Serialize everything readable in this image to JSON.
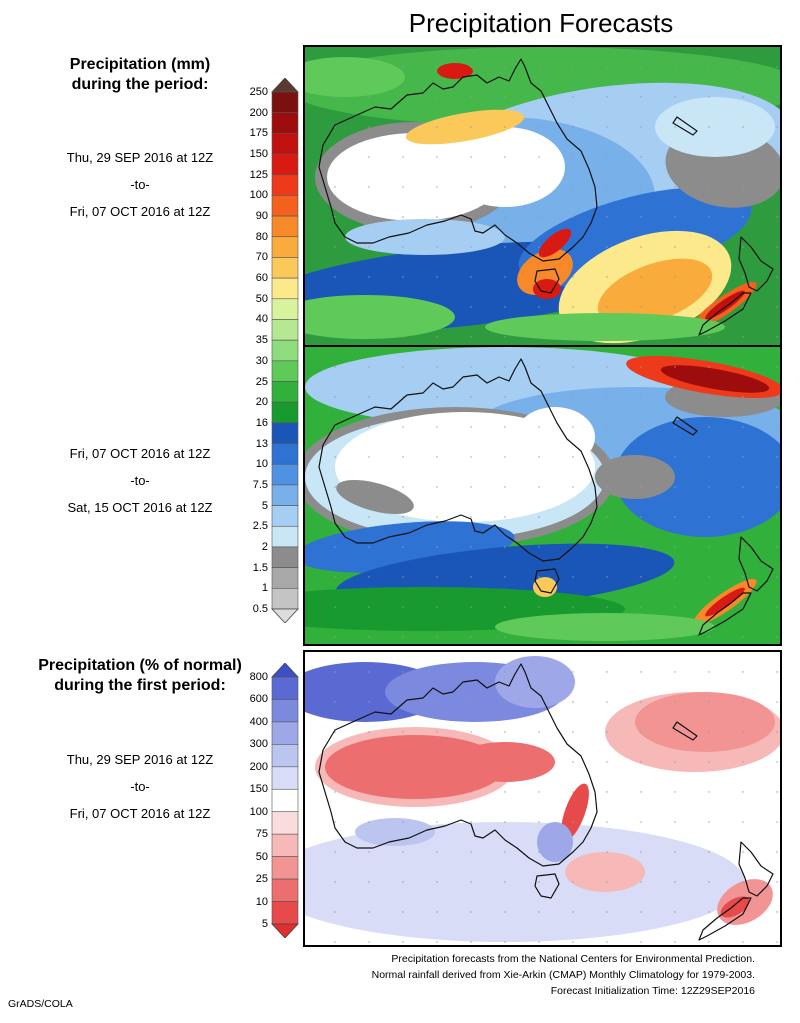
{
  "title": "Precipitation Forecasts",
  "top_section": {
    "heading_line1": "Precipitation (mm)",
    "heading_line2": "during the period:",
    "period1": {
      "start": "Thu, 29 SEP 2016 at 12Z",
      "sep": "-to-",
      "end": "Fri, 07 OCT 2016 at 12Z"
    },
    "period2": {
      "start": "Fri, 07 OCT 2016 at 12Z",
      "sep": "-to-",
      "end": "Sat, 15 OCT 2016 at 12Z"
    },
    "colorbar": {
      "ticks": [
        "250",
        "200",
        "175",
        "150",
        "125",
        "100",
        "90",
        "80",
        "70",
        "60",
        "50",
        "40",
        "35",
        "30",
        "25",
        "20",
        "16",
        "13",
        "10",
        "7.5",
        "5",
        "2.5",
        "2",
        "1.5",
        "1",
        "0.5"
      ],
      "colors": [
        "#5a3a2e",
        "#7a1010",
        "#9e0d0d",
        "#c0100f",
        "#d91a12",
        "#ee3a1a",
        "#f4601e",
        "#f7892a",
        "#f9ab3c",
        "#fbc95a",
        "#fce98c",
        "#d9f29e",
        "#b6e893",
        "#8fdc7f",
        "#5fc95a",
        "#32b03c",
        "#189a2f",
        "#1a56b8",
        "#2e72d4",
        "#5092e2",
        "#78b0ea",
        "#a6cdf2",
        "#c8e6f6",
        "#8c8c8c",
        "#a8a8a8",
        "#c4c4c4",
        "#dcdcdc"
      ]
    }
  },
  "bottom_section": {
    "heading_line1": "Precipitation (% of normal)",
    "heading_line2": "during the first period:",
    "period": {
      "start": "Thu, 29 SEP 2016 at 12Z",
      "sep": "-to-",
      "end": "Fri, 07 OCT 2016 at 12Z"
    },
    "colorbar": {
      "ticks": [
        "800",
        "600",
        "400",
        "300",
        "200",
        "150",
        "100",
        "75",
        "50",
        "25",
        "10",
        "5"
      ],
      "colors": [
        "#3d4fc4",
        "#5a6ad2",
        "#7b89de",
        "#9ea8e8",
        "#bcc4f0",
        "#d8dcf7",
        "#ffffff",
        "#fbdcdc",
        "#f7b8b8",
        "#f29494",
        "#ec6e6e",
        "#e64a4a",
        "#df2f2f"
      ]
    }
  },
  "footer": {
    "line1": "Precipitation forecasts from the National Centers for Environmental Prediction.",
    "line2": "Normal rainfall derived from Xie-Arkin (CMAP) Monthly Climatology for 1979-2003.",
    "line3": "Forecast Initialization Time: 12Z29SEP2016"
  },
  "credit": "GrADS/COLA"
}
